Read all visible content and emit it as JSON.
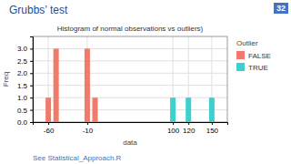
{
  "chart_data": {
    "type": "bar",
    "title": "Grubbs’ test",
    "subtitle": "Histogram of normal observations vs outliers)",
    "x_label": "data",
    "y_label": "Freq",
    "legend_title": "Outlier",
    "legend": "right",
    "grid": true,
    "series": [
      {
        "name": "FALSE",
        "color": "#F07B6B",
        "x": [
          -60,
          -50,
          -10,
          0
        ],
        "values": [
          1,
          3,
          3,
          1
        ]
      },
      {
        "name": "TRUE",
        "color": "#3ECFCF",
        "x": [
          100,
          120,
          150
        ],
        "values": [
          1,
          1,
          1
        ]
      }
    ],
    "xlim": [
      -80,
      170
    ],
    "xticks": [
      -60,
      -10,
      100,
      120,
      150
    ],
    "ylim": [
      0,
      3.5
    ],
    "yticks": [
      {
        "value": 0,
        "label": "0.0"
      },
      0.5,
      {
        "value": 1,
        "label": "1.0"
      },
      1.5,
      {
        "value": 2,
        "label": "2.0"
      },
      2.5,
      {
        "value": 3,
        "label": "3.0"
      }
    ],
    "annotations": [
      "32",
      "See Statistical_Approach.R"
    ]
  }
}
